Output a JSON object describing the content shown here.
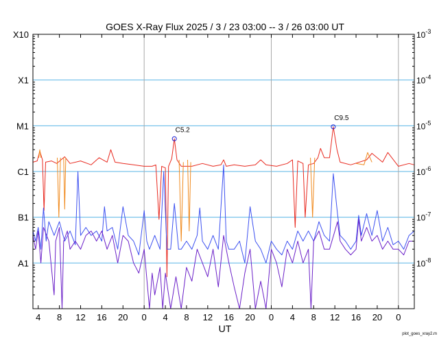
{
  "chart_data": {
    "type": "line",
    "title": "GOES X-Ray Flux   2025 /  3 / 23   03:00 --  3 / 26   03:00   UT",
    "xlabel": "UT",
    "credit": "plot_goes_xray2.m",
    "y_scale": "log",
    "ylim": [
      1e-09,
      0.001
    ],
    "xlim_hours": [
      0,
      72
    ],
    "left_ticks": [
      {
        "value": 0.001,
        "label": "X10"
      },
      {
        "value": 0.0001,
        "label": "X1"
      },
      {
        "value": 1e-05,
        "label": "M1"
      },
      {
        "value": 1e-06,
        "label": "C1"
      },
      {
        "value": 1e-07,
        "label": "B1"
      },
      {
        "value": 1e-08,
        "label": "A1"
      }
    ],
    "right_ticks": [
      {
        "value": 0.001,
        "base": "10",
        "exp": "-3"
      },
      {
        "value": 0.0001,
        "base": "10",
        "exp": "-4"
      },
      {
        "value": 1e-05,
        "base": "10",
        "exp": "-5"
      },
      {
        "value": 1e-06,
        "base": "10",
        "exp": "-6"
      },
      {
        "value": 1e-07,
        "base": "10",
        "exp": "-7"
      },
      {
        "value": 1e-08,
        "base": "10",
        "exp": "-8"
      }
    ],
    "x_ticks": [
      {
        "hour": 1,
        "label": "4"
      },
      {
        "hour": 5,
        "label": "8"
      },
      {
        "hour": 9,
        "label": "12"
      },
      {
        "hour": 13,
        "label": "16"
      },
      {
        "hour": 17,
        "label": "20"
      },
      {
        "hour": 21,
        "label": "0"
      },
      {
        "hour": 25,
        "label": "4"
      },
      {
        "hour": 29,
        "label": "8"
      },
      {
        "hour": 33,
        "label": "12"
      },
      {
        "hour": 37,
        "label": "16"
      },
      {
        "hour": 41,
        "label": "20"
      },
      {
        "hour": 45,
        "label": "0"
      },
      {
        "hour": 49,
        "label": "4"
      },
      {
        "hour": 53,
        "label": "8"
      },
      {
        "hour": 57,
        "label": "12"
      },
      {
        "hour": 61,
        "label": "16"
      },
      {
        "hour": 65,
        "label": "20"
      },
      {
        "hour": 69,
        "label": "0"
      }
    ],
    "day_boundaries_hours": [
      21,
      45,
      69
    ],
    "grid": "horizontal at each decade",
    "annotations": [
      {
        "label": "C5.2",
        "hour": 26.7,
        "value": 5.2e-06
      },
      {
        "label": "C9.5",
        "hour": 56.7,
        "value": 9.5e-06
      }
    ],
    "series": [
      {
        "color": "#e8281e",
        "points": [
          [
            0,
            1.6e-06
          ],
          [
            0.8,
            1.7e-06
          ],
          [
            1.3,
            2.8e-06
          ],
          [
            1.8,
            1.8e-06
          ],
          [
            2.1,
            1.4e-07
          ],
          [
            2.4,
            1.6e-06
          ],
          [
            3.5,
            1.7e-06
          ],
          [
            4.5,
            1.5e-06
          ],
          [
            6,
            2.1e-06
          ],
          [
            7,
            1.5e-06
          ],
          [
            9,
            1.7e-06
          ],
          [
            11,
            1.4e-06
          ],
          [
            12.5,
            2e-06
          ],
          [
            14,
            1.6e-06
          ],
          [
            14.7,
            3e-06
          ],
          [
            15.5,
            1.6e-06
          ],
          [
            17,
            1.5e-06
          ],
          [
            19,
            1.4e-06
          ],
          [
            21,
            1.3e-06
          ],
          [
            22.5,
            1.3e-06
          ],
          [
            23.2,
            1.4e-06
          ],
          [
            23.8,
            9e-08
          ],
          [
            24.3,
            1.3e-06
          ],
          [
            25,
            1.2e-06
          ],
          [
            25.3,
            5e-09
          ],
          [
            25.6,
            1.3e-06
          ],
          [
            26.2,
            1.9e-06
          ],
          [
            26.7,
            5.2e-06
          ],
          [
            27.2,
            1.8e-06
          ],
          [
            28,
            1.3e-06
          ],
          [
            30,
            1.3e-06
          ],
          [
            32,
            1.5e-06
          ],
          [
            34,
            1.3e-06
          ],
          [
            35.5,
            1.4e-06
          ],
          [
            36,
            1.8e-06
          ],
          [
            36.5,
            1.3e-06
          ],
          [
            38,
            1.4e-06
          ],
          [
            40,
            1.3e-06
          ],
          [
            42,
            1.4e-06
          ],
          [
            43,
            1.8e-06
          ],
          [
            44,
            1.4e-06
          ],
          [
            46,
            1.3e-06
          ],
          [
            48,
            1.5e-06
          ],
          [
            49,
            1.8e-06
          ],
          [
            49.5,
            6e-08
          ],
          [
            50,
            1.7e-06
          ],
          [
            51,
            1.5e-06
          ],
          [
            51.4,
            1e-07
          ],
          [
            52,
            1.4e-06
          ],
          [
            53,
            1.5e-06
          ],
          [
            53.8,
            2e-06
          ],
          [
            54.3,
            3.2e-06
          ],
          [
            55,
            2e-06
          ],
          [
            56,
            2e-06
          ],
          [
            56.7,
            9.5e-06
          ],
          [
            57.4,
            3e-06
          ],
          [
            58,
            1.6e-06
          ],
          [
            60,
            1.4e-06
          ],
          [
            63,
            1.8e-06
          ],
          [
            64,
            2.5e-06
          ],
          [
            66,
            1.6e-06
          ],
          [
            67,
            2.6e-06
          ],
          [
            69,
            1.3e-06
          ],
          [
            71,
            1.5e-06
          ],
          [
            72,
            1.4e-06
          ]
        ]
      },
      {
        "color": "#f08a1e",
        "points": [
          [
            1.1,
            2e-06
          ],
          [
            1.3,
            3e-06
          ],
          [
            1.5,
            2e-06
          ],
          [
            null,
            null
          ],
          [
            4.6,
            2e-06
          ],
          [
            4.9,
            1e-07
          ],
          [
            5.2,
            2e-06
          ],
          [
            null,
            null
          ],
          [
            5.8,
            2e-06
          ],
          [
            6.0,
            1.5e-07
          ],
          [
            6.2,
            2e-06
          ],
          [
            null,
            null
          ],
          [
            27.6,
            1.8e-06
          ],
          [
            28.0,
            3e-08
          ],
          [
            28.4,
            1.6e-06
          ],
          [
            null,
            null
          ],
          [
            29.2,
            1.8e-06
          ],
          [
            29.5,
            5e-08
          ],
          [
            29.8,
            1.6e-06
          ],
          [
            null,
            null
          ],
          [
            52.4,
            2e-06
          ],
          [
            52.8,
            1e-07
          ],
          [
            53.2,
            2e-06
          ],
          [
            null,
            null
          ],
          [
            61,
            1.5e-06
          ],
          [
            62.5,
            1.4e-06
          ],
          [
            63.2,
            2.6e-06
          ],
          [
            64,
            1.6e-06
          ]
        ]
      },
      {
        "color": "#3c50f0",
        "points": [
          [
            0,
            5e-08
          ],
          [
            0.5,
            3e-08
          ],
          [
            1,
            6e-08
          ],
          [
            1.5,
            2e-08
          ],
          [
            2,
            1.6e-07
          ],
          [
            2.5,
            3e-08
          ],
          [
            3,
            8e-08
          ],
          [
            4,
            4e-08
          ],
          [
            5,
            8e-08
          ],
          [
            6,
            3e-08
          ],
          [
            7,
            5e-08
          ],
          [
            8,
            2.5e-08
          ],
          [
            8.5,
            1e-06
          ],
          [
            9,
            4e-08
          ],
          [
            10,
            6e-08
          ],
          [
            11,
            4e-08
          ],
          [
            12,
            5e-08
          ],
          [
            13,
            3e-08
          ],
          [
            13.5,
            1.7e-07
          ],
          [
            14,
            5e-08
          ],
          [
            15,
            6e-08
          ],
          [
            16,
            2e-08
          ],
          [
            17,
            1.7e-07
          ],
          [
            18,
            4e-08
          ],
          [
            19,
            3e-08
          ],
          [
            20,
            1.5e-08
          ],
          [
            21,
            1.4e-07
          ],
          [
            21.5,
            3e-08
          ],
          [
            22,
            2e-08
          ],
          [
            23,
            4e-08
          ],
          [
            24,
            2e-08
          ],
          [
            24.7,
            1e-06
          ],
          [
            25.3,
            2e-08
          ],
          [
            26,
            2e-08
          ],
          [
            26.7,
            2e-07
          ],
          [
            27.5,
            2e-08
          ],
          [
            28,
            2e-08
          ],
          [
            29,
            3e-08
          ],
          [
            30,
            2e-08
          ],
          [
            31,
            4e-08
          ],
          [
            31.5,
            1.6e-07
          ],
          [
            32,
            3e-08
          ],
          [
            33,
            2e-08
          ],
          [
            34,
            4e-08
          ],
          [
            35,
            2e-08
          ],
          [
            36,
            1.4e-06
          ],
          [
            36.5,
            3e-08
          ],
          [
            37,
            2e-08
          ],
          [
            38,
            2e-08
          ],
          [
            39,
            3e-08
          ],
          [
            40,
            1e-08
          ],
          [
            41,
            1.7e-07
          ],
          [
            42,
            3e-08
          ],
          [
            43,
            2e-08
          ],
          [
            44,
            1e-08
          ],
          [
            45,
            3e-08
          ],
          [
            46,
            2e-08
          ],
          [
            47,
            1.5e-08
          ],
          [
            48,
            3e-08
          ],
          [
            49,
            2e-08
          ],
          [
            50,
            5e-08
          ],
          [
            51,
            3e-08
          ],
          [
            52,
            5e-08
          ],
          [
            53,
            3e-08
          ],
          [
            54,
            8e-08
          ],
          [
            55,
            4e-08
          ],
          [
            56,
            3e-08
          ],
          [
            56.7,
            9e-07
          ],
          [
            57.5,
            1.2e-07
          ],
          [
            58,
            4e-08
          ],
          [
            59,
            3e-08
          ],
          [
            60,
            2e-08
          ],
          [
            61,
            3e-08
          ],
          [
            61.5,
            1.1e-07
          ],
          [
            62,
            4e-08
          ],
          [
            63,
            1.2e-07
          ],
          [
            64,
            4e-08
          ],
          [
            65,
            1.4e-07
          ],
          [
            66,
            3e-08
          ],
          [
            67,
            6e-08
          ],
          [
            68,
            2.5e-08
          ],
          [
            69,
            3e-08
          ],
          [
            70,
            2e-08
          ],
          [
            71,
            4e-08
          ],
          [
            72,
            5e-08
          ]
        ]
      },
      {
        "color": "#6a1fc8",
        "points": [
          [
            0,
            4e-08
          ],
          [
            0.5,
            2e-08
          ],
          [
            1,
            5e-08
          ],
          [
            1.5,
            1e-08
          ],
          [
            2,
            6e-08
          ],
          [
            3,
            3e-08
          ],
          [
            4,
            2e-09
          ],
          [
            4.3,
            3e-08
          ],
          [
            5,
            6e-08
          ],
          [
            5.5,
            1e-09
          ],
          [
            5.8,
            3e-08
          ],
          [
            6.5,
            5e-08
          ],
          [
            7,
            2e-08
          ],
          [
            8,
            3e-08
          ],
          [
            9,
            2e-08
          ],
          [
            10,
            4e-08
          ],
          [
            11,
            5e-08
          ],
          [
            12,
            3e-08
          ],
          [
            13,
            5e-08
          ],
          [
            14,
            2e-08
          ],
          [
            15,
            4e-08
          ],
          [
            16,
            1e-08
          ],
          [
            17,
            4e-08
          ],
          [
            18,
            3e-08
          ],
          [
            19,
            1e-08
          ],
          [
            20,
            6e-09
          ],
          [
            21,
            2e-08
          ],
          [
            22,
            1e-09
          ],
          [
            22.5,
            6e-09
          ],
          [
            23,
            2e-09
          ],
          [
            24,
            8e-09
          ],
          [
            24.5,
            1e-09
          ],
          [
            25,
            6e-09
          ],
          [
            26,
            1e-09
          ],
          [
            27,
            5e-09
          ],
          [
            28,
            1e-09
          ],
          [
            29,
            8e-09
          ],
          [
            30,
            4e-09
          ],
          [
            31,
            2e-08
          ],
          [
            32,
            1e-08
          ],
          [
            33,
            5e-09
          ],
          [
            34,
            2e-08
          ],
          [
            35,
            3e-09
          ],
          [
            36,
            4e-08
          ],
          [
            37,
            1e-08
          ],
          [
            38,
            3e-09
          ],
          [
            39,
            1e-09
          ],
          [
            40,
            6e-09
          ],
          [
            41,
            2e-08
          ],
          [
            42,
            1e-09
          ],
          [
            43,
            4e-09
          ],
          [
            44,
            1e-09
          ],
          [
            45,
            2e-08
          ],
          [
            46,
            1e-08
          ],
          [
            47,
            3e-09
          ],
          [
            48,
            2e-08
          ],
          [
            49,
            1e-08
          ],
          [
            50,
            3e-08
          ],
          [
            51,
            1e-08
          ],
          [
            52,
            2e-08
          ],
          [
            52.5,
            1e-09
          ],
          [
            53,
            3e-08
          ],
          [
            54,
            5e-08
          ],
          [
            55,
            2e-08
          ],
          [
            56,
            2e-08
          ],
          [
            57,
            5e-08
          ],
          [
            57.5,
            8e-08
          ],
          [
            58,
            3e-08
          ],
          [
            59,
            2e-08
          ],
          [
            60,
            1.5e-08
          ],
          [
            61,
            2e-08
          ],
          [
            61.5,
            9e-08
          ],
          [
            62,
            3e-08
          ],
          [
            63,
            6e-08
          ],
          [
            64,
            3e-08
          ],
          [
            65,
            4e-08
          ],
          [
            66,
            2e-08
          ],
          [
            67,
            3e-08
          ],
          [
            68,
            2e-08
          ],
          [
            69,
            2e-08
          ],
          [
            70,
            1.5e-08
          ],
          [
            71,
            3e-08
          ],
          [
            72,
            3e-08
          ]
        ]
      }
    ]
  }
}
